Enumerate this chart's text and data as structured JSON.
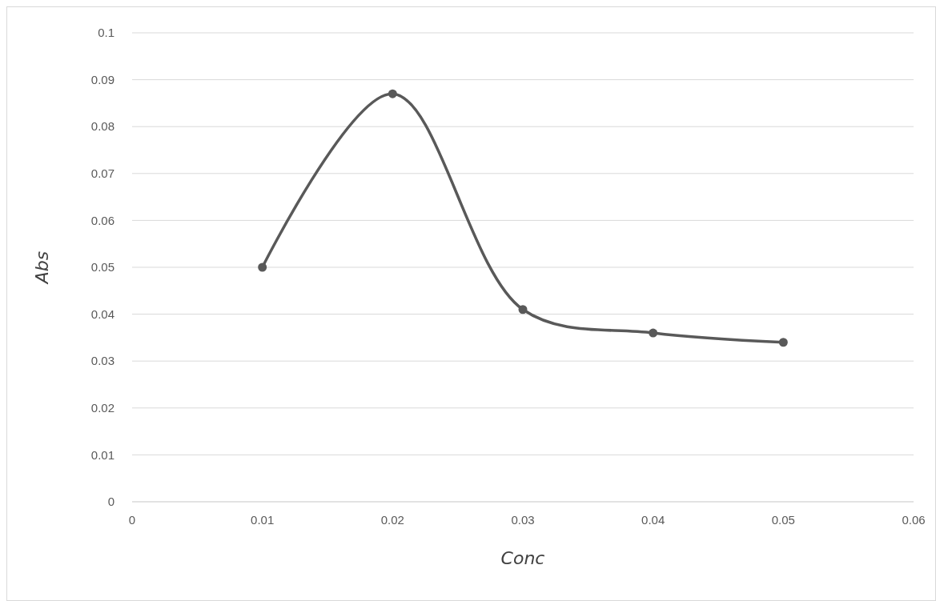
{
  "chart_data": {
    "type": "line",
    "xlabel": "Conc",
    "ylabel": "Abs",
    "x": [
      0.01,
      0.02,
      0.03,
      0.04,
      0.05
    ],
    "series": [
      {
        "color": "#595959",
        "values": [
          0.05,
          0.087,
          0.041,
          0.036,
          0.034
        ]
      }
    ],
    "xlim": [
      0,
      0.06
    ],
    "xticks": [
      0,
      0.01,
      0.02,
      0.03,
      0.04,
      0.05,
      0.06
    ],
    "ylim": [
      0,
      0.1
    ],
    "yticks": [
      0,
      0.01,
      0.02,
      0.03,
      0.04,
      0.05,
      0.06,
      0.07,
      0.08,
      0.09,
      0.1
    ],
    "grid": "y",
    "marker": "circle",
    "line_style": "solid"
  }
}
